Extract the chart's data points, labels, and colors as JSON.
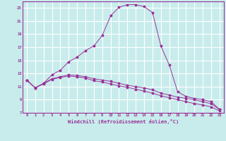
{
  "xlabel": "Windchill (Refroidissement éolien,°C)",
  "background_color": "#c8ecec",
  "line_color": "#993399",
  "grid_color": "#ffffff",
  "xlim": [
    -0.5,
    23.5
  ],
  "ylim": [
    7,
    24
  ],
  "yticks": [
    7,
    9,
    11,
    13,
    15,
    17,
    19,
    21,
    23
  ],
  "xticks": [
    0,
    1,
    2,
    3,
    4,
    5,
    6,
    7,
    8,
    9,
    10,
    11,
    12,
    13,
    14,
    15,
    16,
    17,
    18,
    19,
    20,
    21,
    22,
    23
  ],
  "series1_x": [
    0,
    1,
    2,
    3,
    4,
    5,
    6,
    7,
    8,
    9,
    10,
    11,
    12,
    13,
    14,
    15,
    16,
    17,
    18,
    19,
    20,
    21,
    22,
    23
  ],
  "series1_y": [
    12.0,
    10.8,
    11.5,
    12.8,
    13.5,
    14.8,
    15.5,
    16.5,
    17.2,
    18.8,
    21.8,
    23.1,
    23.5,
    23.5,
    23.2,
    22.3,
    17.2,
    14.3,
    10.2,
    9.5,
    9.2,
    9.0,
    8.7,
    7.5
  ],
  "series2_x": [
    0,
    1,
    2,
    3,
    4,
    5,
    6,
    7,
    8,
    9,
    10,
    11,
    12,
    13,
    14,
    15,
    16,
    17,
    18,
    19,
    20,
    21,
    22,
    23
  ],
  "series2_y": [
    12.0,
    10.8,
    11.5,
    12.2,
    12.5,
    12.8,
    12.7,
    12.5,
    12.2,
    12.0,
    11.8,
    11.5,
    11.2,
    11.0,
    10.8,
    10.5,
    10.0,
    9.7,
    9.4,
    9.2,
    9.0,
    8.7,
    8.4,
    7.5
  ],
  "series3_x": [
    0,
    1,
    2,
    3,
    4,
    5,
    6,
    7,
    8,
    9,
    10,
    11,
    12,
    13,
    14,
    15,
    16,
    17,
    18,
    19,
    20,
    21,
    22,
    23
  ],
  "series3_y": [
    12.0,
    10.8,
    11.4,
    12.1,
    12.4,
    12.6,
    12.5,
    12.3,
    11.9,
    11.7,
    11.4,
    11.1,
    10.9,
    10.6,
    10.3,
    10.0,
    9.6,
    9.3,
    9.0,
    8.7,
    8.4,
    8.2,
    7.9,
    7.3
  ]
}
